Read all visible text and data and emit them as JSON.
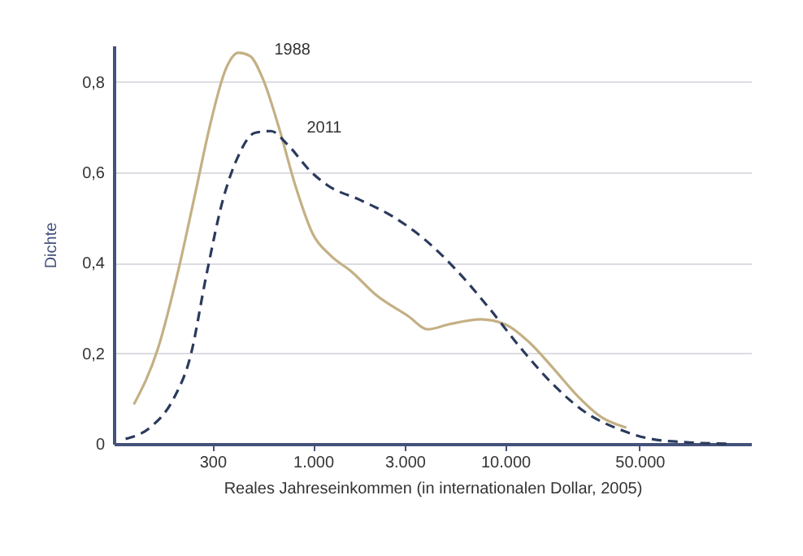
{
  "chart_data": {
    "type": "line",
    "xlabel": "Reales Jahreseinkommen (in internationalen Dollar, 2005)",
    "ylabel": "Dichte",
    "log": "x",
    "grid": "y",
    "marker": "none",
    "xlim": [
      92,
      190000
    ],
    "xticks": [
      300,
      {
        "value": 1000,
        "label": "1.000"
      },
      {
        "value": 3000,
        "label": "3.000"
      },
      {
        "value": 10000,
        "label": "10.000"
      },
      {
        "value": 50000,
        "label": "50.000"
      }
    ],
    "ylim": [
      0,
      0.88
    ],
    "yticks": [
      0,
      {
        "value": 0.2,
        "label": "0,2"
      },
      {
        "value": 0.4,
        "label": "0,4"
      },
      {
        "value": 0.6,
        "label": "0,6"
      },
      {
        "value": 0.8,
        "label": "0,8"
      }
    ],
    "series": [
      {
        "name": "1988",
        "color": "#c4b084",
        "line_style": "solid",
        "x": [
          117,
          156,
          201,
          244,
          296,
          352,
          410,
          470,
          548,
          666,
          809,
          1000,
          1236,
          1592,
          2128,
          3134,
          3955,
          5083,
          7480,
          10000,
          13360,
          17870,
          23900,
          31900,
          42700
        ],
        "values": [
          0.087,
          0.21,
          0.39,
          0.553,
          0.716,
          0.828,
          0.864,
          0.857,
          0.807,
          0.698,
          0.571,
          0.463,
          0.416,
          0.38,
          0.329,
          0.282,
          0.253,
          0.264,
          0.275,
          0.264,
          0.224,
          0.166,
          0.105,
          0.058,
          0.036
        ]
      },
      {
        "name": "2011",
        "color": "#2b3a5c",
        "line_style": "dashed",
        "x": [
          106,
          142,
          189,
          230,
          279,
          338,
          410,
          498,
          605,
          734,
          982,
          1191,
          1754,
          2582,
          3802,
          5597,
          8241,
          12130,
          17870,
          26300,
          38700,
          57000,
          84000,
          150000
        ],
        "values": [
          0.011,
          0.036,
          0.101,
          0.192,
          0.373,
          0.535,
          0.637,
          0.687,
          0.691,
          0.662,
          0.6,
          0.571,
          0.539,
          0.503,
          0.452,
          0.383,
          0.3,
          0.21,
          0.13,
          0.069,
          0.033,
          0.011,
          0.004,
          0.0
        ]
      }
    ]
  }
}
